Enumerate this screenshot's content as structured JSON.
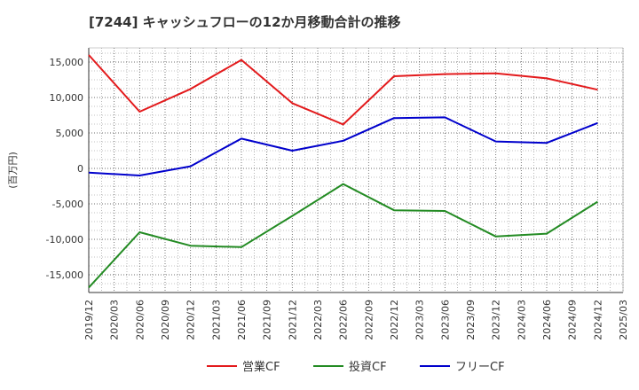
{
  "chart_data": {
    "type": "line",
    "title": "[7244]  キャッシュフローの12か月移動合計の推移",
    "ylabel": "(百万円)",
    "xlabel": "",
    "ylim": [
      -17500,
      17000
    ],
    "yticks": [
      15000,
      10000,
      5000,
      0,
      -5000,
      -10000,
      -15000
    ],
    "ytick_labels": [
      "15,000",
      "10,000",
      "5,000",
      "0",
      "-5,000",
      "-10,000",
      "-15,000"
    ],
    "xticks": [
      "2019/12",
      "2020/03",
      "2020/06",
      "2020/09",
      "2020/12",
      "2021/03",
      "2021/06",
      "2021/09",
      "2021/12",
      "2022/03",
      "2022/06",
      "2022/09",
      "2022/12",
      "2023/03",
      "2023/06",
      "2023/09",
      "2023/12",
      "2024/03",
      "2024/06",
      "2024/09",
      "2024/12",
      "2025/03"
    ],
    "grid": true,
    "legend_position": "bottom",
    "series": [
      {
        "name": "営業CF",
        "color": "#e31a1c",
        "x": [
          "2019/12",
          "2020/06",
          "2020/12",
          "2021/06",
          "2021/12",
          "2022/06",
          "2022/12",
          "2023/06",
          "2023/12",
          "2024/06",
          "2024/12"
        ],
        "values": [
          16000,
          8000,
          11200,
          15300,
          9200,
          6200,
          13000,
          13300,
          13400,
          12700,
          11100
        ]
      },
      {
        "name": "投資CF",
        "color": "#238b23",
        "x": [
          "2019/12",
          "2020/06",
          "2020/12",
          "2021/06",
          "2021/12",
          "2022/06",
          "2022/12",
          "2023/06",
          "2023/12",
          "2024/06",
          "2024/12"
        ],
        "values": [
          -16800,
          -9000,
          -10900,
          -11100,
          -6700,
          -2200,
          -5900,
          -6000,
          -9600,
          -9200,
          -4700
        ]
      },
      {
        "name": "フリーCF",
        "color": "#0000cc",
        "x": [
          "2019/12",
          "2020/06",
          "2020/12",
          "2021/06",
          "2021/12",
          "2022/06",
          "2022/12",
          "2023/06",
          "2023/12",
          "2024/06",
          "2024/12"
        ],
        "values": [
          -600,
          -1000,
          300,
          4200,
          2500,
          3900,
          7100,
          7200,
          3800,
          3600,
          6400
        ]
      }
    ]
  }
}
